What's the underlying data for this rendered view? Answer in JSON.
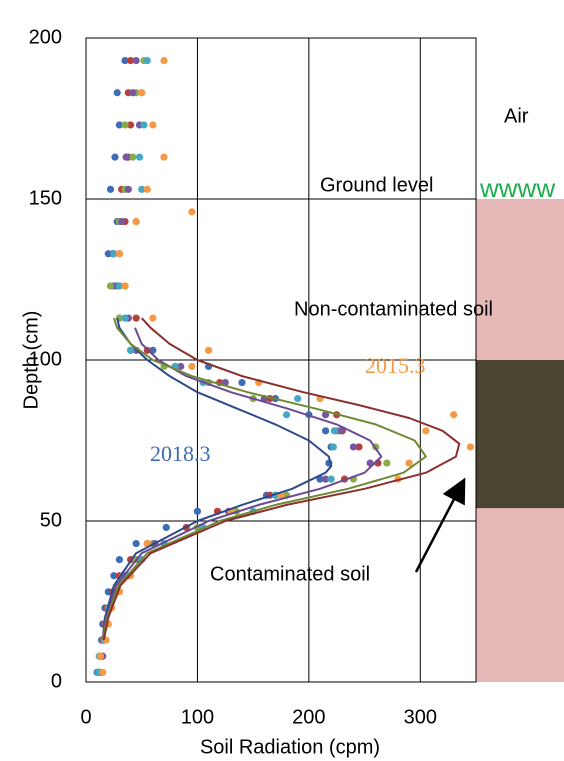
{
  "chart_data": {
    "type": "scatter",
    "x_label": "Soil Radiation (cpm)",
    "y_label": "Depth (cm)",
    "xlim": [
      0,
      350
    ],
    "ylim": [
      0,
      200
    ],
    "xticks": [
      0,
      100,
      200,
      300
    ],
    "yticks": [
      0,
      50,
      100,
      150,
      200
    ],
    "grid": true,
    "annotations": [
      "Air",
      "Ground level",
      "wwww",
      "Non-contaminated soil",
      "2015.3",
      "2018.3",
      "Contaminated soil"
    ],
    "layers": [
      {
        "from": 0,
        "to": 150,
        "color": "#e6b9b8"
      },
      {
        "from": 54,
        "to": 100,
        "color": "#4a4430"
      }
    ],
    "series": [
      {
        "type": "scatter",
        "color": "#3d6cb6",
        "x": [
          10,
          12,
          14,
          15,
          17,
          20,
          25,
          30,
          45,
          72,
          100,
          162,
          210,
          218,
          220,
          215,
          200,
          170,
          140,
          110,
          60,
          30,
          25,
          20,
          28,
          22,
          26,
          30,
          28,
          35
        ],
        "y": [
          3,
          8,
          13,
          18,
          23,
          28,
          33,
          38,
          43,
          48,
          53,
          58,
          63,
          68,
          73,
          78,
          83,
          88,
          93,
          98,
          103,
          113,
          123,
          133,
          143,
          153,
          163,
          173,
          183,
          193
        ]
      },
      {
        "type": "scatter",
        "color": "#b9403a",
        "x": [
          12,
          13,
          15,
          17,
          19,
          24,
          30,
          40,
          55,
          90,
          118,
          165,
          232,
          262,
          245,
          230,
          225,
          165,
          120,
          80,
          55,
          45,
          35,
          30,
          35,
          32,
          38,
          40,
          38,
          40
        ],
        "y": [
          3,
          8,
          13,
          18,
          23,
          28,
          33,
          38,
          43,
          48,
          53,
          58,
          63,
          68,
          73,
          78,
          83,
          88,
          93,
          98,
          103,
          113,
          123,
          133,
          143,
          153,
          163,
          173,
          183,
          193
        ]
      },
      {
        "type": "scatter",
        "color": "#8aab4a",
        "x": [
          12,
          14,
          16,
          18,
          20,
          26,
          33,
          45,
          60,
          100,
          135,
          180,
          240,
          270,
          260,
          225,
          215,
          150,
          110,
          70,
          40,
          30,
          22,
          25,
          30,
          35,
          42,
          35,
          45,
          52
        ],
        "y": [
          3,
          8,
          13,
          18,
          23,
          28,
          33,
          38,
          43,
          48,
          53,
          58,
          63,
          68,
          73,
          78,
          83,
          88,
          93,
          98,
          103,
          113,
          123,
          133,
          143,
          153,
          163,
          173,
          183,
          193
        ]
      },
      {
        "type": "scatter",
        "color": "#7658a0",
        "x": [
          13,
          15,
          17,
          19,
          22,
          27,
          35,
          48,
          62,
          105,
          128,
          170,
          215,
          255,
          240,
          228,
          215,
          160,
          125,
          85,
          45,
          38,
          28,
          24,
          32,
          38,
          36,
          48,
          42,
          45
        ],
        "y": [
          3,
          8,
          13,
          18,
          23,
          28,
          33,
          38,
          43,
          48,
          53,
          58,
          63,
          68,
          73,
          78,
          83,
          88,
          93,
          98,
          103,
          113,
          123,
          133,
          143,
          153,
          163,
          173,
          183,
          193
        ]
      },
      {
        "type": "scatter",
        "color": "#45a8c3",
        "x": [
          11,
          12,
          16,
          18,
          21,
          28,
          38,
          50,
          70,
          105,
          150,
          170,
          220,
          290,
          222,
          223,
          180,
          190,
          105,
          80,
          40,
          35,
          30,
          25,
          45,
          50,
          48,
          52,
          50,
          55
        ],
        "y": [
          3,
          8,
          13,
          18,
          23,
          28,
          33,
          38,
          43,
          48,
          53,
          58,
          63,
          68,
          73,
          78,
          83,
          88,
          93,
          98,
          103,
          113,
          123,
          133,
          143,
          153,
          163,
          173,
          183,
          193
        ]
      },
      {
        "type": "scatter",
        "color": "#f59a43",
        "x": [
          15,
          13,
          18,
          20,
          23,
          30,
          40,
          55,
          130,
          175,
          280,
          290,
          345,
          305,
          330,
          210,
          155,
          95,
          110,
          60,
          35,
          30,
          45,
          95,
          55,
          70,
          60,
          50,
          70
        ],
        "y": [
          3,
          8,
          13,
          18,
          23,
          28,
          33,
          43,
          53,
          58,
          63,
          68,
          73,
          78,
          83,
          88,
          93,
          98,
          103,
          113,
          123,
          133,
          143,
          146,
          153,
          163,
          173,
          183,
          193
        ]
      },
      {
        "type": "line",
        "color": "#2d4a8a",
        "x": [
          15,
          17,
          25,
          45,
          100,
          140,
          185,
          215,
          220,
          218,
          200,
          170,
          135,
          100,
          75,
          55,
          40,
          30,
          28
        ],
        "y": [
          13,
          20,
          30,
          40,
          50,
          55,
          60,
          65,
          67,
          70,
          75,
          80,
          85,
          90,
          95,
          100,
          105,
          110,
          113
        ]
      },
      {
        "type": "line",
        "color": "#6a4a94",
        "x": [
          15,
          18,
          27,
          50,
          110,
          155,
          210,
          250,
          265,
          255,
          225,
          180,
          130,
          90,
          65,
          50,
          44
        ],
        "y": [
          13,
          20,
          30,
          40,
          50,
          55,
          60,
          65,
          70,
          75,
          80,
          85,
          90,
          95,
          100,
          105,
          110
        ]
      },
      {
        "type": "line",
        "color": "#6e8a34",
        "x": [
          15,
          19,
          29,
          55,
          120,
          170,
          235,
          285,
          305,
          295,
          260,
          205,
          145,
          95,
          60,
          40,
          28,
          25
        ],
        "y": [
          13,
          20,
          30,
          40,
          50,
          55,
          60,
          65,
          70,
          75,
          80,
          85,
          90,
          95,
          100,
          105,
          110,
          113
        ]
      },
      {
        "type": "line",
        "color": "#8b2e2e",
        "x": [
          16,
          20,
          31,
          58,
          125,
          180,
          250,
          305,
          332,
          335,
          320,
          290,
          245,
          195,
          140,
          100,
          75,
          58,
          50
        ],
        "y": [
          13,
          20,
          30,
          40,
          50,
          55,
          60,
          65,
          70,
          74,
          78,
          82,
          86,
          90,
          95,
          100,
          105,
          110,
          113
        ]
      }
    ]
  }
}
